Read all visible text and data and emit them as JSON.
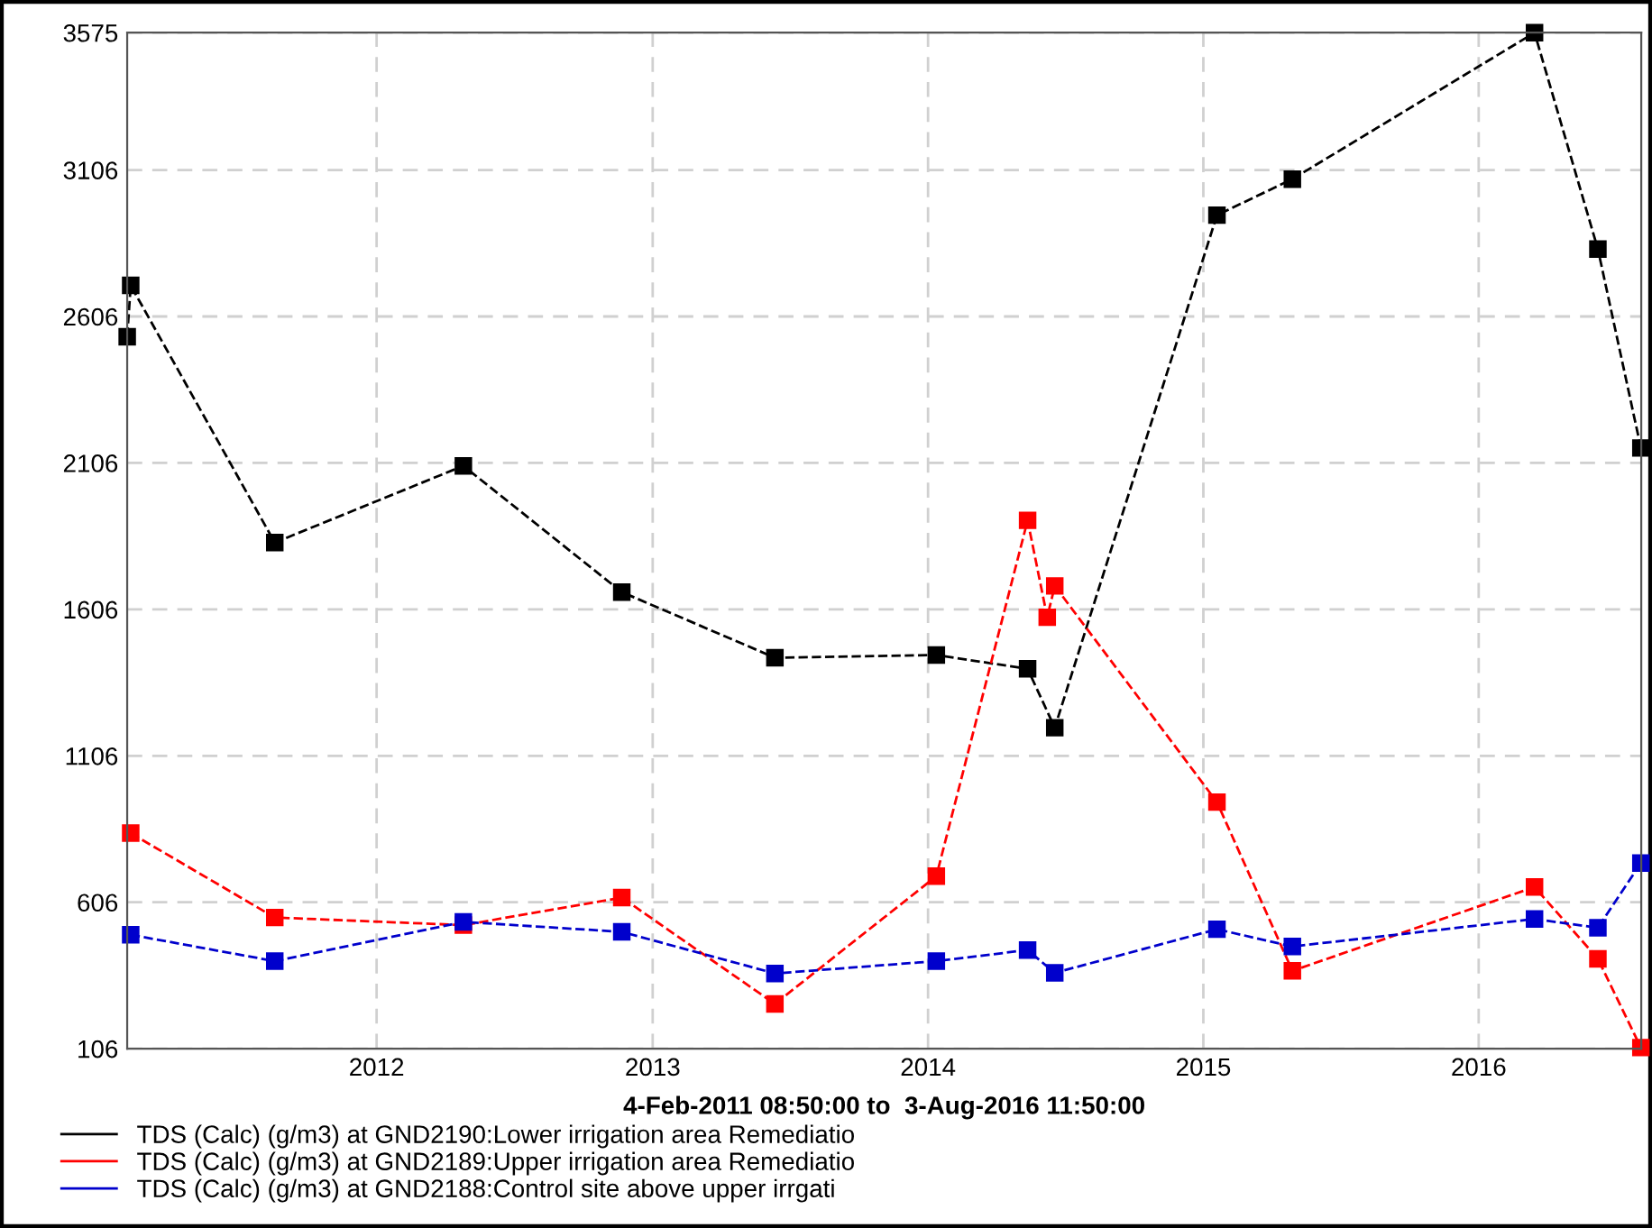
{
  "chart_data": {
    "type": "line",
    "xlabel": "4-Feb-2011 08:50:00 to  3-Aug-2016 11:50:00",
    "xlim": [
      "2011-02-04T08:50",
      "2016-08-03T11:50"
    ],
    "xticks": [
      {
        "value": "2012-01-01",
        "label": "2012"
      },
      {
        "value": "2013-01-01",
        "label": "2013"
      },
      {
        "value": "2014-01-01",
        "label": "2014"
      },
      {
        "value": "2015-01-01",
        "label": "2015"
      },
      {
        "value": "2016-01-01",
        "label": "2016"
      }
    ],
    "ylim": [
      106,
      3575
    ],
    "yticks": [
      106,
      606,
      1106,
      1606,
      2106,
      2606,
      3106,
      3575
    ],
    "grid": true,
    "legend": "bottom",
    "marker": "square",
    "line_style": "dashed",
    "series": [
      {
        "name": "TDS (Calc) (g/m3) at GND2190:Lower irrigation area Remediatio",
        "color": "#000000",
        "x": [
          "2011-02-04T08:50",
          "2011-02-09",
          "2011-08-19",
          "2012-04-25",
          "2012-11-21",
          "2013-06-12",
          "2014-01-12",
          "2014-05-13",
          "2014-06-18",
          "2015-01-19",
          "2015-04-29",
          "2016-03-15",
          "2016-06-07",
          "2016-08-03"
        ],
        "values": [
          2537,
          2712,
          1834,
          2096,
          1665,
          1441,
          1450,
          1403,
          1202,
          2952,
          3075,
          3575,
          2836,
          2157
        ]
      },
      {
        "name": "TDS (Calc) (g/m3) at GND2189:Upper irrigation area Remediatio",
        "color": "#ff0000",
        "x": [
          "2011-02-09",
          "2011-08-19",
          "2012-04-25",
          "2012-11-21",
          "2013-06-12",
          "2014-01-12",
          "2014-05-13",
          "2014-06-08",
          "2014-06-18",
          "2015-01-19",
          "2015-04-29",
          "2016-03-15",
          "2016-06-07",
          "2016-08-03"
        ],
        "values": [
          842,
          554,
          528,
          622,
          259,
          695,
          1910,
          1579,
          1686,
          948,
          372,
          658,
          413,
          110
        ]
      },
      {
        "name": "TDS (Calc) (g/m3) at GND2188:Control site above upper irrgati",
        "color": "#0000cc",
        "x": [
          "2011-02-09",
          "2011-08-19",
          "2012-04-25",
          "2012-11-21",
          "2013-06-12",
          "2014-01-12",
          "2014-05-13",
          "2014-06-18",
          "2015-01-19",
          "2015-04-29",
          "2016-03-15",
          "2016-06-07",
          "2016-08-03"
        ],
        "values": [
          495,
          405,
          539,
          505,
          363,
          405,
          443,
          365,
          514,
          455,
          549,
          519,
          740
        ]
      }
    ]
  }
}
